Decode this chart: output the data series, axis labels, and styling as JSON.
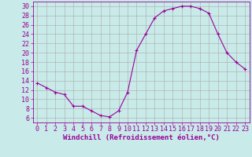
{
  "hours": [
    0,
    1,
    2,
    3,
    4,
    5,
    6,
    7,
    8,
    9,
    10,
    11,
    12,
    13,
    14,
    15,
    16,
    17,
    18,
    19,
    20,
    21,
    22,
    23
  ],
  "windchill": [
    13.5,
    12.5,
    11.5,
    11.0,
    8.5,
    8.5,
    7.5,
    6.5,
    6.2,
    7.5,
    11.5,
    20.5,
    24.0,
    27.5,
    29.0,
    29.5,
    30.0,
    30.0,
    29.5,
    28.5,
    24.0,
    20.0,
    18.0,
    16.5
  ],
  "line_color": "#990099",
  "marker": "+",
  "marker_size": 3.0,
  "bg_color": "#c8eae8",
  "grid_color": "#aaaaaa",
  "xlabel": "Windchill (Refroidissement éolien,°C)",
  "ylim": [
    5,
    31
  ],
  "xlim": [
    -0.5,
    23.5
  ],
  "yticks": [
    6,
    8,
    10,
    12,
    14,
    16,
    18,
    20,
    22,
    24,
    26,
    28,
    30
  ],
  "xticks": [
    0,
    1,
    2,
    3,
    4,
    5,
    6,
    7,
    8,
    9,
    10,
    11,
    12,
    13,
    14,
    15,
    16,
    17,
    18,
    19,
    20,
    21,
    22,
    23
  ],
  "label_color": "#990099",
  "label_fontsize": 6.5,
  "tick_fontsize": 6.0
}
